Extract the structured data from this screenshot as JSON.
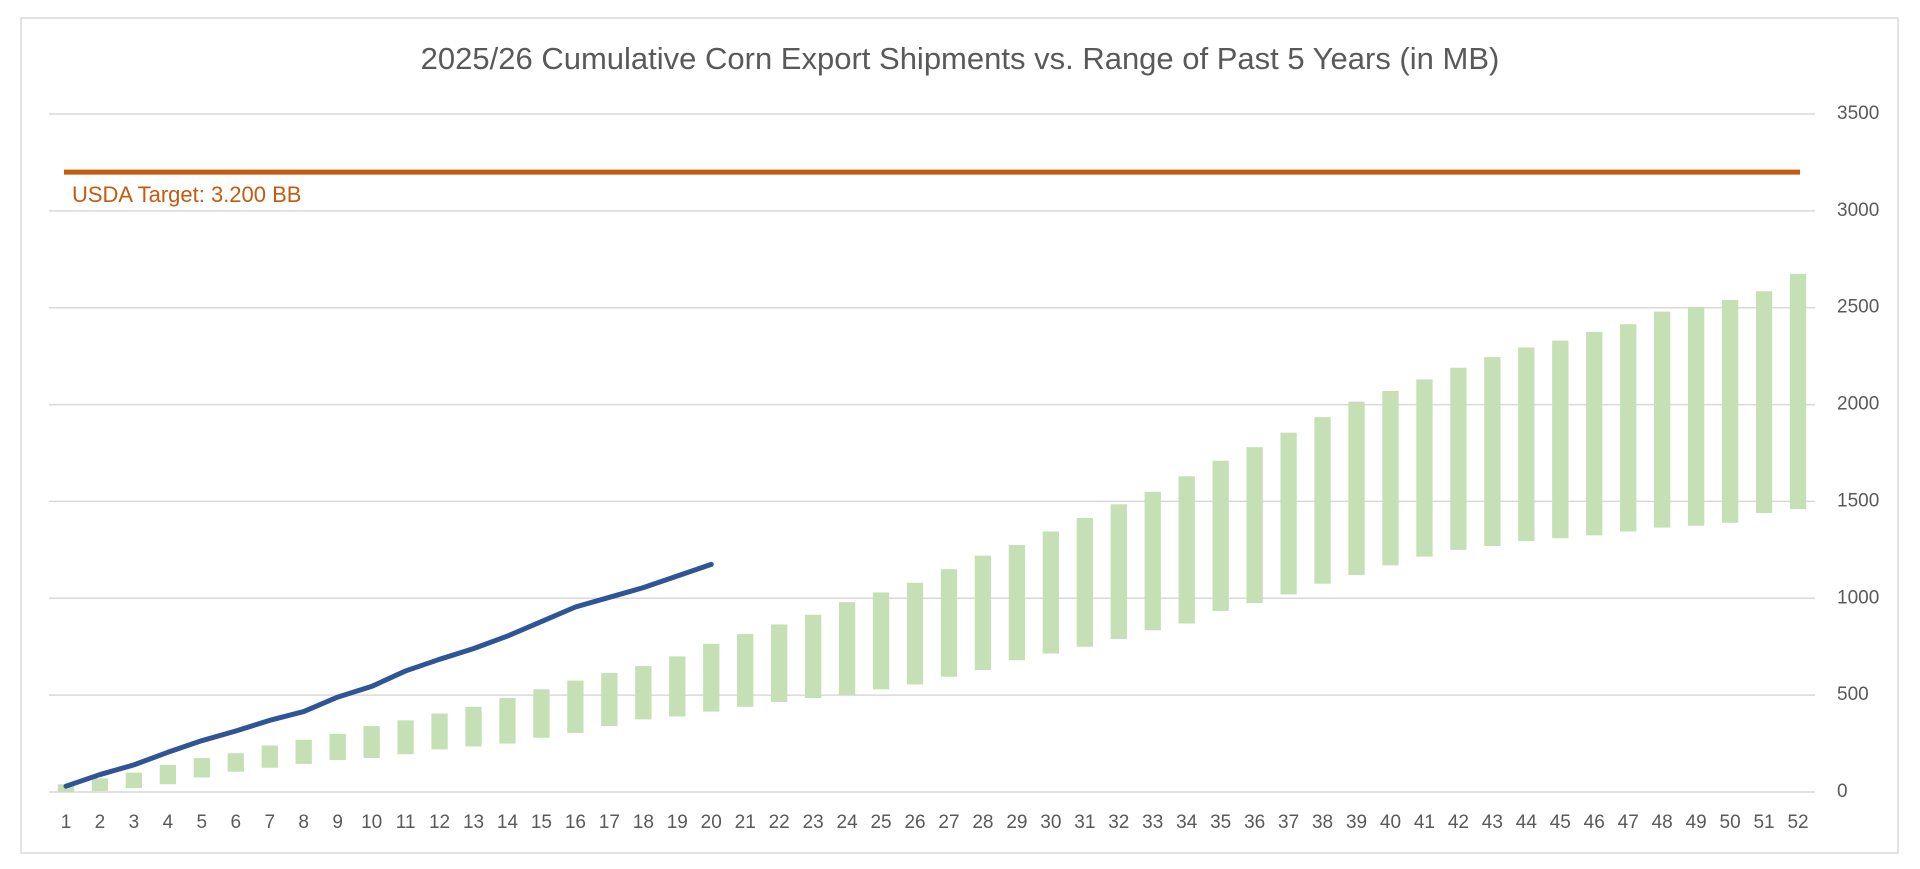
{
  "chart_data": {
    "type": "range-bar-line",
    "title": "2025/26 Cumulative Corn Export Shipments vs. Range of Past 5 Years (in MB)",
    "categories": [
      1,
      2,
      3,
      4,
      5,
      6,
      7,
      8,
      9,
      10,
      11,
      12,
      13,
      14,
      15,
      16,
      17,
      18,
      19,
      20,
      21,
      22,
      23,
      24,
      25,
      26,
      27,
      28,
      29,
      30,
      31,
      32,
      33,
      34,
      35,
      36,
      37,
      38,
      39,
      40,
      41,
      42,
      43,
      44,
      45,
      46,
      47,
      48,
      49,
      50,
      51,
      52
    ],
    "range": {
      "color": "#c5e0b4",
      "low": [
        0,
        5,
        20,
        40,
        75,
        105,
        125,
        145,
        165,
        175,
        195,
        220,
        235,
        250,
        280,
        305,
        340,
        375,
        390,
        415,
        440,
        465,
        485,
        500,
        530,
        555,
        595,
        630,
        680,
        715,
        750,
        790,
        835,
        870,
        935,
        975,
        1020,
        1075,
        1120,
        1170,
        1215,
        1250,
        1270,
        1295,
        1310,
        1325,
        1345,
        1365,
        1375,
        1390,
        1440,
        1460
      ],
      "high": [
        40,
        70,
        100,
        140,
        175,
        200,
        240,
        270,
        300,
        340,
        370,
        405,
        440,
        485,
        530,
        575,
        615,
        650,
        700,
        765,
        815,
        865,
        915,
        980,
        1030,
        1080,
        1150,
        1220,
        1275,
        1345,
        1415,
        1485,
        1550,
        1630,
        1710,
        1780,
        1855,
        1935,
        2015,
        2070,
        2130,
        2190,
        2245,
        2295,
        2330,
        2375,
        2415,
        2480,
        2505,
        2540,
        2585,
        2675
      ]
    },
    "line": {
      "color": "#2f5597",
      "values": [
        30,
        90,
        140,
        205,
        265,
        315,
        370,
        415,
        490,
        545,
        625,
        685,
        740,
        805,
        880,
        955,
        1005,
        1055,
        1115,
        1175,
        null,
        null,
        null,
        null,
        null,
        null,
        null,
        null,
        null,
        null,
        null,
        null,
        null,
        null,
        null,
        null,
        null,
        null,
        null,
        null,
        null,
        null,
        null,
        null,
        null,
        null,
        null,
        null,
        null,
        null,
        null,
        null
      ]
    },
    "target": {
      "value": 3200,
      "label": "USDA Target: 3.200 BB",
      "color": "#c55a11"
    },
    "ylim": [
      0,
      3500
    ],
    "yticks": [
      0,
      500,
      1000,
      1500,
      2000,
      2500,
      3000,
      3500
    ],
    "grid": true,
    "y_axis_side": "right"
  }
}
